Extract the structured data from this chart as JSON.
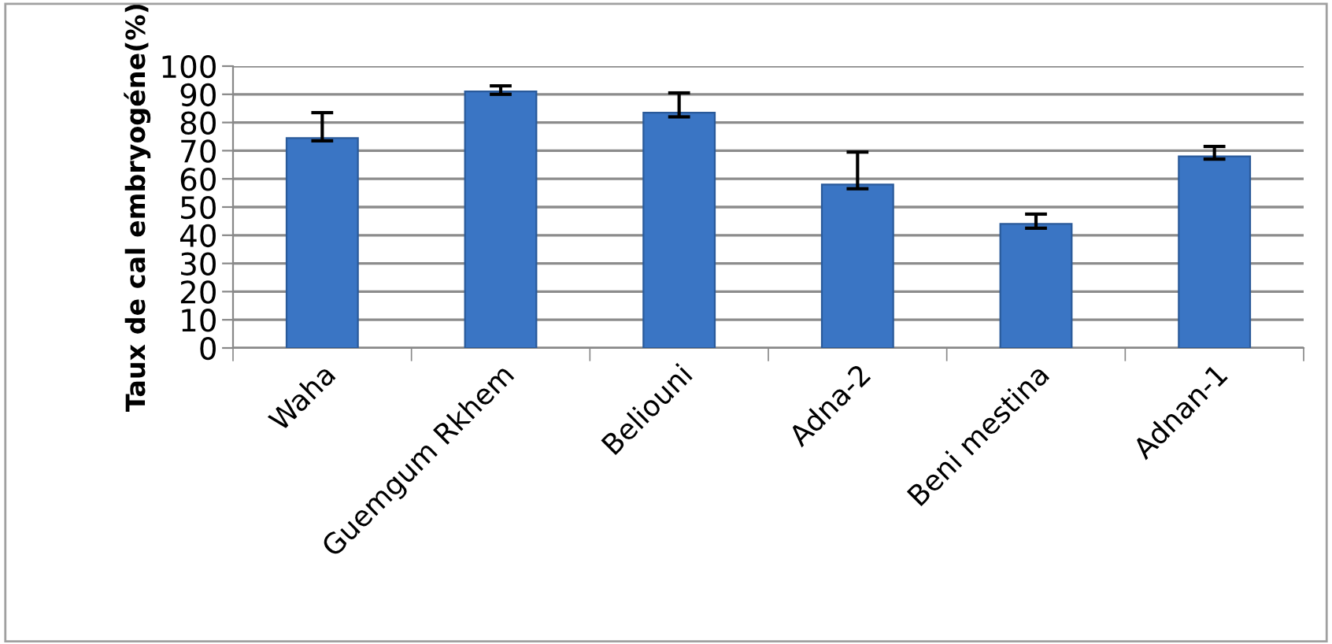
{
  "chart_data": {
    "type": "bar",
    "ylabel": "Taux de cal embryogéne(%)",
    "categories": [
      "Waha",
      "Guemgum Rkhem",
      "Beliouni",
      "Adna-2",
      "Beni mestina",
      "Adnan-1"
    ],
    "values": [
      74.5,
      91,
      83.5,
      58,
      44,
      68
    ],
    "errors": [
      [
        73.5,
        83.5
      ],
      [
        90,
        93
      ],
      [
        82,
        90.5
      ],
      [
        56.5,
        69.5
      ],
      [
        42.5,
        47.5
      ],
      [
        67,
        71.5
      ]
    ],
    "color": "#3a75c4",
    "ylim": [
      0,
      100
    ],
    "yticks": [
      0,
      10,
      20,
      30,
      40,
      50,
      60,
      70,
      80,
      90,
      100
    ],
    "grid": "y",
    "legend": false
  }
}
